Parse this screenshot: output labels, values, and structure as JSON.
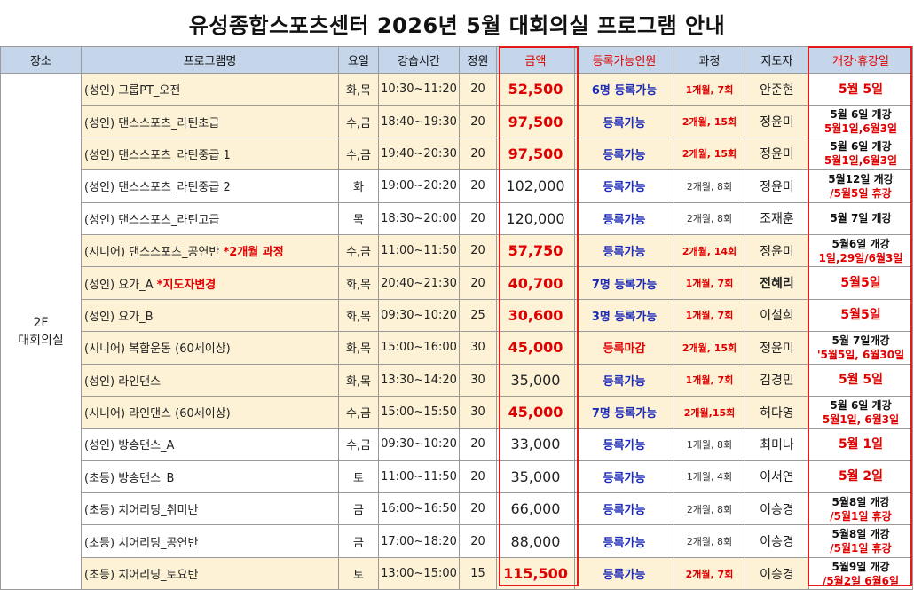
{
  "title": "유성종합스포츠센터 2026년 5월 대회의실 프로그램 안내",
  "headers": {
    "place": "장소",
    "program": "프로그램명",
    "days": "요일",
    "time": "강습시간",
    "capacity": "정원",
    "price": "금액",
    "availability": "등록가능인원",
    "course": "과정",
    "instructor": "지도자",
    "schedule": "개강·휴강일"
  },
  "place": {
    "line1": "2F",
    "line2": "대회의실"
  },
  "rows": [
    {
      "program": "(성인) 그룹PT_오전",
      "note": "",
      "days": "화,목",
      "time": "10:30~11:20",
      "capacity": "20",
      "price": "52,500",
      "availability": "6명 등록가능",
      "course": "1개월, 7회",
      "instructor": "안준현",
      "schedule1": "5월 5일",
      "schedule2": ""
    },
    {
      "program": "(성인) 댄스스포츠_라틴초급",
      "note": "",
      "days": "수,금",
      "time": "18:40~19:30",
      "capacity": "20",
      "price": "97,500",
      "availability": "등록가능",
      "course": "2개월, 15회",
      "instructor": "정윤미",
      "schedule1": "5월 6일 개강",
      "schedule2": "5월1일,6월3일"
    },
    {
      "program": "(성인) 댄스스포츠_라틴중급 1",
      "note": "",
      "days": "수,금",
      "time": "19:40~20:30",
      "capacity": "20",
      "price": "97,500",
      "availability": "등록가능",
      "course": "2개월, 15회",
      "instructor": "정윤미",
      "schedule1": "5월 6일 개강",
      "schedule2": "5월1일,6월3일"
    },
    {
      "program": "(성인) 댄스스포츠_라틴중급 2",
      "note": "",
      "days": "화",
      "time": "19:00~20:20",
      "capacity": "20",
      "price": "102,000",
      "availability": "등록가능",
      "course": "2개월, 8회",
      "instructor": "정윤미",
      "schedule1": "5월12일 개강",
      "schedule2": "/5월5일 휴강"
    },
    {
      "program": "(성인) 댄스스포츠_라틴고급",
      "note": "",
      "days": "목",
      "time": "18:30~20:00",
      "capacity": "20",
      "price": "120,000",
      "availability": "등록가능",
      "course": "2개월, 8회",
      "instructor": "조재훈",
      "schedule1": "5월 7일 개강",
      "schedule2": ""
    },
    {
      "program": "(시니어) 댄스스포츠_공연반 ",
      "note": "*2개월 과정",
      "days": "수,금",
      "time": "11:00~11:50",
      "capacity": "20",
      "price": "57,750",
      "availability": "등록가능",
      "course": "2개월, 14회",
      "instructor": "정윤미",
      "schedule1": "5월6일 개강",
      "schedule2": "1일,29일/6월3일"
    },
    {
      "program": "(성인) 요가_A ",
      "note": "*지도자변경",
      "days": "화,목",
      "time": "20:40~21:30",
      "capacity": "20",
      "price": "40,700",
      "availability": "7명 등록가능",
      "course": "1개월, 7회",
      "instructor": "전혜리",
      "schedule1": "5월5일",
      "schedule2": ""
    },
    {
      "program": "(성인) 요가_B",
      "note": "",
      "days": "화,목",
      "time": "09:30~10:20",
      "capacity": "25",
      "price": "30,600",
      "availability": "3명 등록가능",
      "course": "1개월, 7회",
      "instructor": "이설희",
      "schedule1": "5월5일",
      "schedule2": ""
    },
    {
      "program": "(시니어) 복합운동 (60세이상)",
      "note": "",
      "days": "화,목",
      "time": "15:00~16:00",
      "capacity": "30",
      "price": "45,000",
      "availability": "등록마감",
      "course": "2개월, 15회",
      "instructor": "정윤미",
      "schedule1": "5월 7일개강",
      "schedule2": "'5월5일, 6월30일"
    },
    {
      "program": "(성인) 라인댄스",
      "note": "",
      "days": "화,목",
      "time": "13:30~14:20",
      "capacity": "30",
      "price": "35,000",
      "availability": "등록가능",
      "course": "1개월, 7회",
      "instructor": "김경민",
      "schedule1": "5월 5일",
      "schedule2": ""
    },
    {
      "program": "(시니어) 라인댄스 (60세이상)",
      "note": "",
      "days": "수,금",
      "time": "15:00~15:50",
      "capacity": "30",
      "price": "45,000",
      "availability": "7명 등록가능",
      "course": "2개월,15회",
      "instructor": "허다영",
      "schedule1": "5월 6일 개강",
      "schedule2": "5월1일, 6월3일"
    },
    {
      "program": "(성인) 방송댄스_A",
      "note": "",
      "days": "수,금",
      "time": "09:30~10:20",
      "capacity": "20",
      "price": "33,000",
      "availability": "등록가능",
      "course": "1개월, 8회",
      "instructor": "최미나",
      "schedule1": "5월 1일",
      "schedule2": ""
    },
    {
      "program": "(초등) 방송댄스_B",
      "note": "",
      "days": "토",
      "time": "11:00~11:50",
      "capacity": "20",
      "price": "35,000",
      "availability": "등록가능",
      "course": "1개월, 4회",
      "instructor": "이서연",
      "schedule1": "5월 2일",
      "schedule2": ""
    },
    {
      "program": "(초등) 치어리딩_취미반",
      "note": "",
      "days": "금",
      "time": "16:00~16:50",
      "capacity": "20",
      "price": "66,000",
      "availability": "등록가능",
      "course": "2개월, 8회",
      "instructor": "이승경",
      "schedule1": "5월8일 개강",
      "schedule2": "/5월1일 휴강"
    },
    {
      "program": "(초등) 치어리딩_공연반",
      "note": "",
      "days": "금",
      "time": "17:00~18:20",
      "capacity": "20",
      "price": "88,000",
      "availability": "등록가능",
      "course": "2개월, 8회",
      "instructor": "이승경",
      "schedule1": "5월8일 개강",
      "schedule2": "/5월1일 휴강"
    },
    {
      "program": "(초등) 치어리딩_토요반",
      "note": "",
      "days": "토",
      "time": "13:00~15:00",
      "capacity": "15",
      "price": "115,500",
      "availability": "등록가능",
      "course": "2개월, 7회",
      "instructor": "이승경",
      "schedule1": "5월9일 개강",
      "schedule2": "/5월2일 6월6일"
    }
  ]
}
